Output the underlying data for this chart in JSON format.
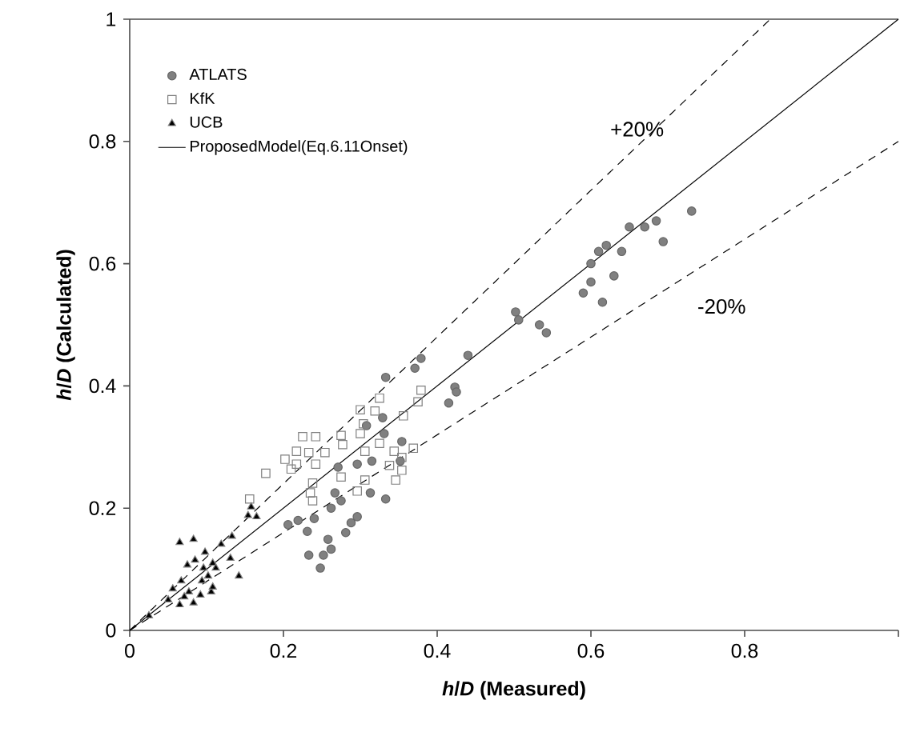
{
  "chart_data": {
    "type": "scatter",
    "xlabel": "*h*/*D* (Measured)",
    "ylabel": "*h*/*D* (Calculated)",
    "xlim": [
      0,
      1
    ],
    "ylim": [
      0,
      1
    ],
    "xticks": [
      0,
      0.2,
      0.4,
      0.6,
      0.8,
      {
        "value": 1,
        "label": null
      }
    ],
    "yticks": [
      0,
      0.2,
      0.4,
      0.6,
      0.8,
      1
    ],
    "grid": false,
    "legend": "top left",
    "annotations": [
      "+20%",
      "-20%"
    ],
    "series": [
      {
        "name": "ATLATS",
        "marker": "circle",
        "color": "#808080",
        "x": [
          0.685,
          0.731,
          0.694,
          0.502,
          0.506,
          0.533,
          0.542,
          0.59,
          0.615,
          0.44,
          0.6,
          0.61,
          0.62,
          0.64,
          0.65,
          0.67,
          0.6,
          0.63,
          0.333,
          0.371,
          0.379,
          0.423,
          0.425,
          0.415,
          0.329,
          0.308,
          0.331,
          0.354,
          0.313,
          0.333,
          0.267,
          0.275,
          0.262,
          0.296,
          0.288,
          0.281,
          0.258,
          0.262,
          0.233,
          0.252,
          0.231,
          0.219,
          0.206,
          0.24,
          0.296,
          0.271,
          0.315,
          0.352,
          0.248
        ],
        "values": [
          0.67,
          0.686,
          0.636,
          0.521,
          0.508,
          0.5,
          0.487,
          0.552,
          0.537,
          0.45,
          0.6,
          0.62,
          0.63,
          0.62,
          0.66,
          0.66,
          0.57,
          0.58,
          0.414,
          0.429,
          0.445,
          0.398,
          0.39,
          0.372,
          0.348,
          0.335,
          0.322,
          0.309,
          0.225,
          0.215,
          0.225,
          0.212,
          0.2,
          0.186,
          0.176,
          0.16,
          0.149,
          0.133,
          0.123,
          0.123,
          0.162,
          0.18,
          0.173,
          0.183,
          0.272,
          0.267,
          0.277,
          0.277,
          0.102
        ]
      },
      {
        "name": "KfK",
        "marker": "square",
        "color": "#808080",
        "x": [
          0.379,
          0.375,
          0.325,
          0.3,
          0.319,
          0.356,
          0.3,
          0.275,
          0.242,
          0.225,
          0.217,
          0.233,
          0.254,
          0.277,
          0.306,
          0.325,
          0.344,
          0.369,
          0.354,
          0.338,
          0.354,
          0.346,
          0.306,
          0.275,
          0.296,
          0.238,
          0.235,
          0.238,
          0.242,
          0.217,
          0.304,
          0.177,
          0.156,
          0.202,
          0.21
        ],
        "values": [
          0.393,
          0.374,
          0.38,
          0.361,
          0.359,
          0.351,
          0.322,
          0.319,
          0.317,
          0.317,
          0.293,
          0.291,
          0.291,
          0.304,
          0.293,
          0.306,
          0.293,
          0.298,
          0.283,
          0.27,
          0.262,
          0.246,
          0.246,
          0.251,
          0.228,
          0.241,
          0.225,
          0.212,
          0.272,
          0.272,
          0.338,
          0.257,
          0.215,
          0.28,
          0.264
        ]
      },
      {
        "name": "UCB",
        "marker": "triangle",
        "color": "#000000",
        "x": [
          0.025,
          0.05,
          0.056,
          0.065,
          0.067,
          0.075,
          0.065,
          0.083,
          0.085,
          0.077,
          0.083,
          0.096,
          0.098,
          0.094,
          0.102,
          0.108,
          0.106,
          0.092,
          0.108,
          0.119,
          0.112,
          0.131,
          0.133,
          0.142,
          0.154,
          0.165,
          0.158,
          0.071
        ],
        "values": [
          0.024,
          0.05,
          0.068,
          0.042,
          0.081,
          0.107,
          0.144,
          0.149,
          0.115,
          0.063,
          0.045,
          0.102,
          0.128,
          0.081,
          0.089,
          0.11,
          0.063,
          0.058,
          0.071,
          0.141,
          0.102,
          0.118,
          0.154,
          0.089,
          0.188,
          0.186,
          0.202,
          0.055
        ]
      },
      {
        "name": "ProposedModel(Eq.6.11Onset)",
        "type": "line",
        "marker": "none",
        "line_style": "solid",
        "color": "#000000",
        "x": [
          0,
          1
        ],
        "values": [
          0,
          1
        ]
      },
      {
        "type": "line",
        "marker": "none",
        "line_style": "dashed",
        "color": "#000000",
        "x": [
          0,
          0.8333
        ],
        "values": [
          0,
          1
        ]
      },
      {
        "type": "line",
        "marker": "none",
        "line_style": "dashed",
        "color": "#000000",
        "x": [
          0,
          1
        ],
        "values": [
          0,
          0.8
        ]
      }
    ]
  }
}
